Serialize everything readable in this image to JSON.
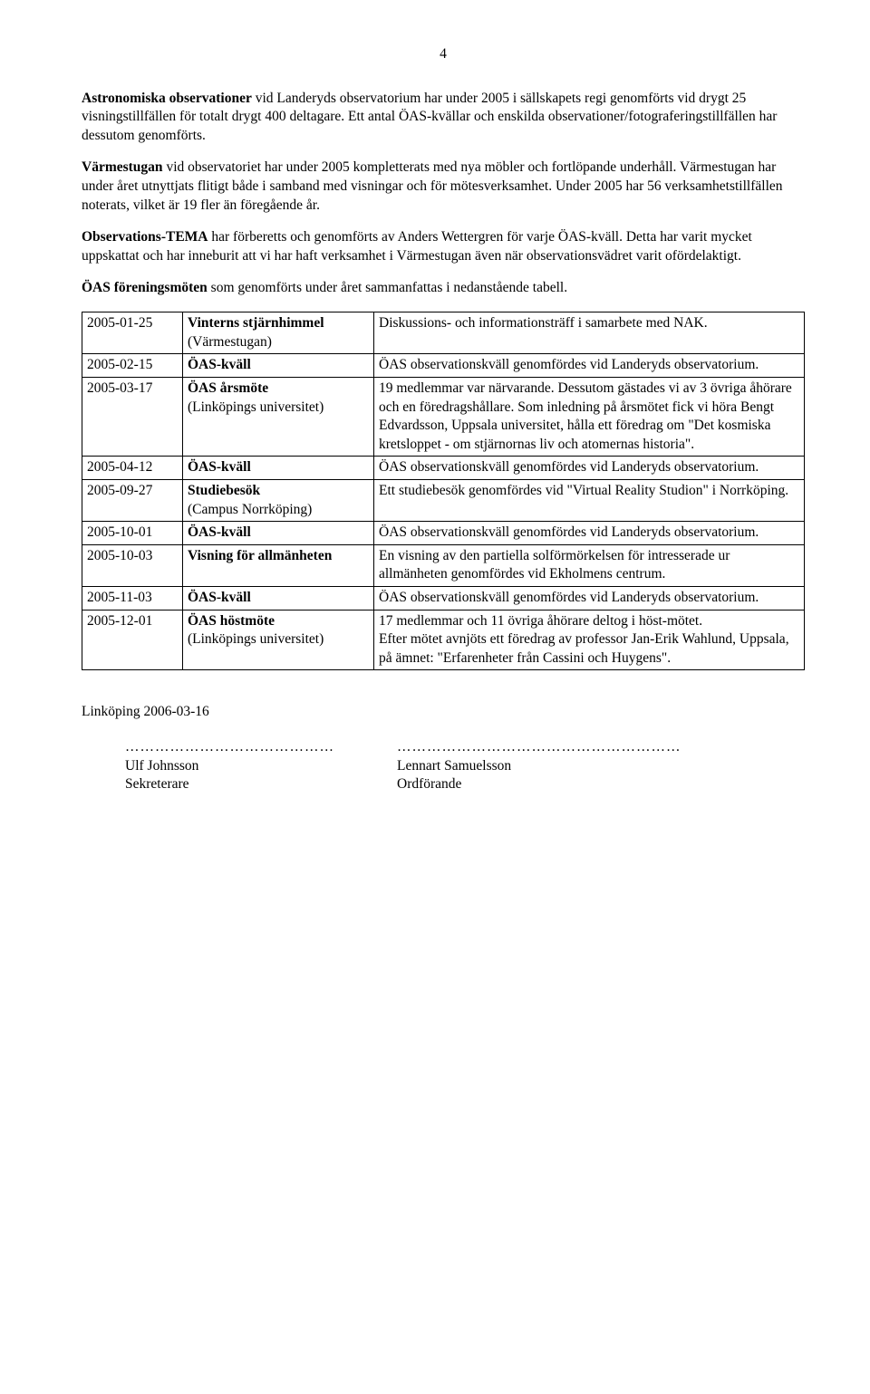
{
  "page_number": "4",
  "paragraphs": {
    "p1_bold": "Astronomiska observationer",
    "p1_rest": " vid Landeryds observatorium har under 2005 i sällskapets regi genomförts vid drygt 25 visningstillfällen för totalt drygt 400 deltagare. Ett antal ÖAS-kvällar och enskilda observationer/fotograferingstillfällen har dessutom genomförts.",
    "p2_bold": "Värmestugan",
    "p2_rest": " vid observatoriet har under 2005 kompletterats med nya möbler och fortlöpande underhåll. Värmestugan har under året utnyttjats flitigt både i samband med visningar och för mötesverksamhet. Under 2005 har 56 verksamhetstillfällen noterats, vilket är 19 fler än föregående år.",
    "p3_bold": "Observations-TEMA",
    "p3_rest": " har förberetts och genomförts av Anders Wettergren för varje ÖAS-kväll. Detta har varit mycket uppskattat och har inneburit att vi har haft verksamhet i Värmestugan även när observationsvädret varit ofördelaktigt.",
    "p4_bold": "ÖAS föreningsmöten",
    "p4_rest": " som genomförts under året sammanfattas i nedanstående tabell."
  },
  "table_rows": [
    {
      "date": "2005-01-25",
      "event_bold": "Vinterns stjärnhimmel",
      "event_rest": "(Värmestugan)",
      "desc": "Diskussions- och informationsträff  i samarbete med NAK."
    },
    {
      "date": "2005-02-15",
      "event_bold": "ÖAS-kväll",
      "event_rest": "",
      "desc": "ÖAS observationskväll genomfördes vid Landeryds observatorium."
    },
    {
      "date": "2005-03-17",
      "event_bold": "ÖAS årsmöte",
      "event_rest": "(Linköpings universitet)",
      "desc": "19 medlemmar var närvarande. Dessutom gästades vi av 3 övriga åhörare och en föredragshållare. Som inledning på årsmötet fick vi höra Bengt Edvardsson, Uppsala universitet, hålla ett föredrag om \"Det kosmiska kretsloppet - om stjärnornas liv och atomernas historia\"."
    },
    {
      "date": "2005-04-12",
      "event_bold": "ÖAS-kväll",
      "event_rest": "",
      "desc": "ÖAS observationskväll genomfördes vid Landeryds observatorium."
    },
    {
      "date": "2005-09-27",
      "event_bold": "Studiebesök",
      "event_rest": "(Campus Norrköping)",
      "desc": "Ett studiebesök genomfördes vid \"Virtual Reality Studion\" i Norrköping."
    },
    {
      "date": "2005-10-01",
      "event_bold": "ÖAS-kväll",
      "event_rest": "",
      "desc": "ÖAS observationskväll genomfördes vid Landeryds observatorium."
    },
    {
      "date": "2005-10-03",
      "event_bold": "Visning för allmänheten",
      "event_rest": "",
      "desc": "En visning av den partiella solförmörkelsen för intresserade ur allmänheten genomfördes vid Ekholmens centrum."
    },
    {
      "date": "2005-11-03",
      "event_bold": "ÖAS-kväll",
      "event_rest": "",
      "desc": "ÖAS observationskväll genomfördes vid Landeryds observatorium."
    },
    {
      "date": "2005-12-01",
      "event_bold": "ÖAS höstmöte",
      "event_rest": "(Linköpings universitet)",
      "desc": "17 medlemmar och 11 övriga åhörare deltog i höst-mötet.\nEfter mötet avnjöts ett föredrag av professor Jan-Erik Wahlund, Uppsala, på ämnet: \"Erfarenheter från Cassini och Huygens\"."
    }
  ],
  "footer": {
    "place_date": "Linköping  2006-03-16",
    "dots_left": "……………………………………",
    "dots_right": "…………………………………………………",
    "name_left": "Ulf Johnsson",
    "role_left": "Sekreterare",
    "name_right": "Lennart Samuelsson",
    "role_right": "Ordförande"
  }
}
